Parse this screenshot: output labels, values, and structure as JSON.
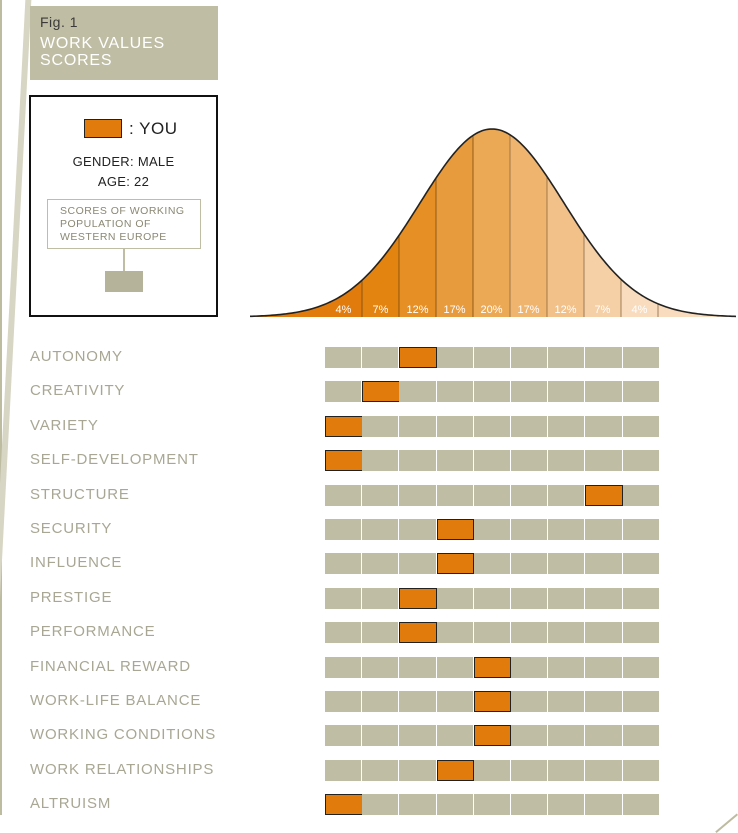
{
  "figure": {
    "label": "Fig. 1",
    "title": "WORK VALUES SCORES"
  },
  "legend": {
    "you_label": ": YOU",
    "gender": "GENDER: MALE",
    "age": "AGE: 22",
    "population_label": "SCORES OF WORKING POPULATION OF WESTERN EUROPE"
  },
  "colors": {
    "you": "#e07b0c",
    "population": "#bfbda4",
    "label": "#a8a794"
  },
  "chart_data": [
    {
      "type": "area",
      "description_of_shape": "normal distribution curve split into 9 bands",
      "bands": [
        "4%",
        "7%",
        "12%",
        "17%",
        "20%",
        "17%",
        "12%",
        "7%",
        "4%"
      ],
      "band_values": [
        4,
        7,
        12,
        17,
        20,
        17,
        12,
        7,
        4
      ]
    },
    {
      "type": "table",
      "columns": 9,
      "rows": [
        {
          "name": "AUTONOMY",
          "score_band": 3
        },
        {
          "name": "CREATIVITY",
          "score_band": 2
        },
        {
          "name": "VARIETY",
          "score_band": 1
        },
        {
          "name": "SELF-DEVELOPMENT",
          "score_band": 1
        },
        {
          "name": "STRUCTURE",
          "score_band": 8
        },
        {
          "name": "SECURITY",
          "score_band": 4
        },
        {
          "name": "INFLUENCE",
          "score_band": 4
        },
        {
          "name": "PRESTIGE",
          "score_band": 3
        },
        {
          "name": "PERFORMANCE",
          "score_band": 3
        },
        {
          "name": "FINANCIAL REWARD",
          "score_band": 5
        },
        {
          "name": "WORK-LIFE BALANCE",
          "score_band": 5
        },
        {
          "name": "WORKING CONDITIONS",
          "score_band": 5
        },
        {
          "name": "WORK RELATIONSHIPS",
          "score_band": 4
        },
        {
          "name": "ALTRUISM",
          "score_band": 1
        }
      ]
    }
  ]
}
